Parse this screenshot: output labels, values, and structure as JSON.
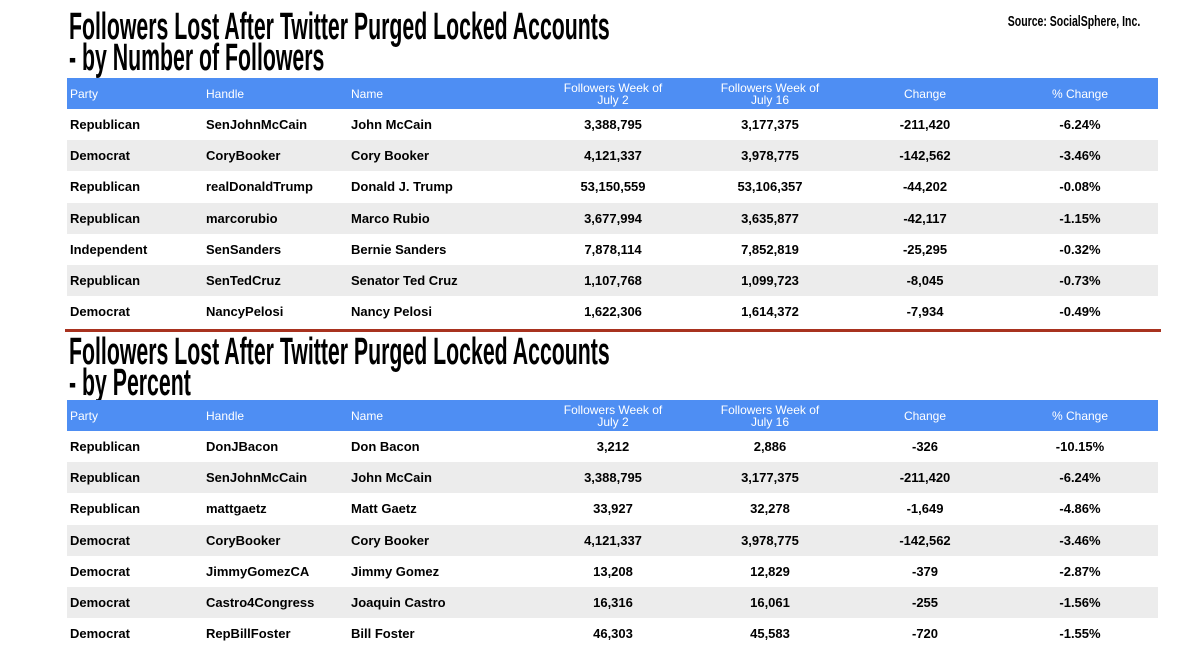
{
  "source": "Source: SocialSphere, Inc.",
  "tables": [
    {
      "title": [
        "Followers Lost After Twitter Purged Locked Accounts",
        "- by Number of Followers"
      ],
      "header": [
        "Party",
        "Handle",
        "Name",
        "Followers Week of July 2",
        "Followers Week of July 16",
        "Change",
        "% Change"
      ],
      "rows": [
        [
          "Republican",
          "SenJohnMcCain",
          "John McCain",
          "3,388,795",
          "3,177,375",
          "-211,420",
          "-6.24%"
        ],
        [
          "Democrat",
          "CoryBooker",
          "Cory Booker",
          "4,121,337",
          "3,978,775",
          "-142,562",
          "-3.46%"
        ],
        [
          "Republican",
          "realDonaldTrump",
          "Donald J. Trump",
          "53,150,559",
          "53,106,357",
          "-44,202",
          "-0.08%"
        ],
        [
          "Republican",
          "marcorubio",
          "Marco Rubio",
          "3,677,994",
          "3,635,877",
          "-42,117",
          "-1.15%"
        ],
        [
          "Independent",
          "SenSanders",
          "Bernie Sanders",
          "7,878,114",
          "7,852,819",
          "-25,295",
          "-0.32%"
        ],
        [
          "Republican",
          "SenTedCruz",
          "Senator Ted Cruz",
          "1,107,768",
          "1,099,723",
          "-8,045",
          "-0.73%"
        ],
        [
          "Democrat",
          "NancyPelosi",
          "Nancy Pelosi",
          "1,622,306",
          "1,614,372",
          "-7,934",
          "-0.49%"
        ]
      ]
    },
    {
      "title": [
        "Followers Lost After Twitter Purged Locked Accounts",
        "- by Percent"
      ],
      "header": [
        "Party",
        "Handle",
        "Name",
        "Followers Week of July 2",
        "Followers Week of July 16",
        "Change",
        "% Change"
      ],
      "rows": [
        [
          "Republican",
          "DonJBacon",
          "Don Bacon",
          "3,212",
          "2,886",
          "-326",
          "-10.15%"
        ],
        [
          "Republican",
          "SenJohnMcCain",
          "John McCain",
          "3,388,795",
          "3,177,375",
          "-211,420",
          "-6.24%"
        ],
        [
          "Republican",
          "mattgaetz",
          "Matt Gaetz",
          "33,927",
          "32,278",
          "-1,649",
          "-4.86%"
        ],
        [
          "Democrat",
          "CoryBooker",
          "Cory Booker",
          "4,121,337",
          "3,978,775",
          "-142,562",
          "-3.46%"
        ],
        [
          "Democrat",
          "JimmyGomezCA",
          "Jimmy Gomez",
          "13,208",
          "12,829",
          "-379",
          "-2.87%"
        ],
        [
          "Democrat",
          "Castro4Congress",
          "Joaquin Castro",
          "16,316",
          "16,061",
          "-255",
          "-1.56%"
        ],
        [
          "Democrat",
          "RepBillFoster",
          "Bill Foster",
          "46,303",
          "45,583",
          "-720",
          "-1.55%"
        ]
      ]
    }
  ]
}
